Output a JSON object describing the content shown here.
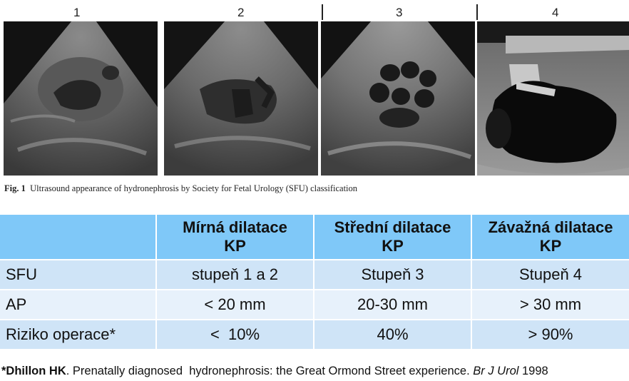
{
  "figure": {
    "panel_numbers": [
      "1",
      "2",
      "3",
      "4"
    ],
    "caption_label": "Fig. 1",
    "caption_text": "Ultrasound appearance of hydronephrosis by Society for Fetal Urology (SFU) classification"
  },
  "table": {
    "headers": [
      "",
      [
        "Mírná dilatace",
        "KP"
      ],
      [
        "Střední dilatace",
        "KP"
      ],
      [
        "Závažná dilatace",
        "KP"
      ]
    ],
    "rows": [
      [
        "SFU",
        "stupeň 1 a 2",
        "Stupeň 3",
        "Stupeň 4"
      ],
      [
        "AP",
        "< 20 mm",
        "20-30 mm",
        "> 30 mm"
      ],
      [
        "Riziko operace*",
        "<  10%",
        "40%",
        "> 90%"
      ]
    ]
  },
  "citation": {
    "author": "*Dhillon HK",
    "title": ". Prenatally diagnosed  hydronephrosis: the Great Ormond Street experience. ",
    "journal": "Br J Urol",
    "year": " 1998"
  }
}
